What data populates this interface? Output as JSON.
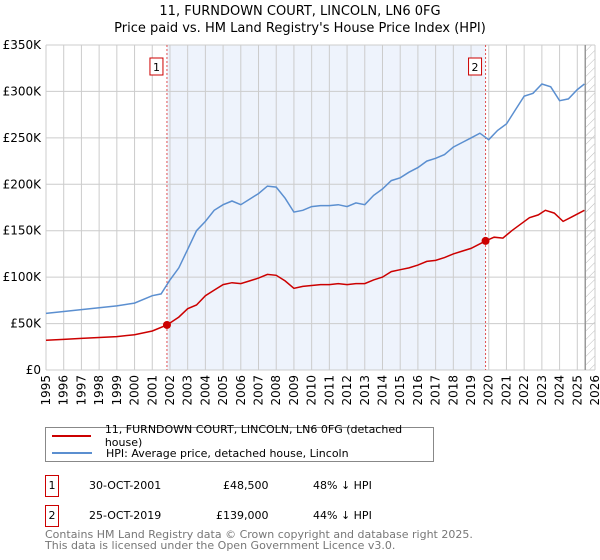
{
  "title": "11, FURNDOWN COURT, LINCOLN, LN6 0FG",
  "subtitle": "Price paid vs. HM Land Registry's House Price Index (HPI)",
  "chart_data": {
    "type": "line",
    "xlim": [
      1995,
      2026
    ],
    "ylim": [
      0,
      350000
    ],
    "yticks": [
      {
        "v": 0,
        "label": "£0"
      },
      {
        "v": 50000,
        "label": "£50K"
      },
      {
        "v": 100000,
        "label": "£100K"
      },
      {
        "v": 150000,
        "label": "£150K"
      },
      {
        "v": 200000,
        "label": "£200K"
      },
      {
        "v": 250000,
        "label": "£250K"
      },
      {
        "v": 300000,
        "label": "£300K"
      },
      {
        "v": 350000,
        "label": "£350K"
      }
    ],
    "xticks": [
      "1995",
      "1996",
      "1997",
      "1998",
      "1999",
      "2000",
      "2001",
      "2002",
      "2003",
      "2004",
      "2005",
      "2006",
      "2007",
      "2008",
      "2009",
      "2010",
      "2011",
      "2012",
      "2013",
      "2014",
      "2015",
      "2016",
      "2017",
      "2018",
      "2019",
      "2020",
      "2021",
      "2022",
      "2023",
      "2024",
      "2025",
      "2026"
    ],
    "shaded_range": [
      2001.83,
      2019.82
    ],
    "forecast_hatch_from": 2025.45,
    "series": [
      {
        "name": "11, FURNDOWN COURT, LINCOLN, LN6 0FG (detached house)",
        "color": "#cc0000",
        "x": [
          1995,
          1996,
          1997,
          1998,
          1999,
          2000,
          2001,
          2001.83,
          2002.5,
          2003,
          2003.5,
          2004,
          2004.5,
          2005,
          2005.5,
          2006,
          2006.5,
          2007,
          2007.5,
          2008,
          2008.5,
          2009,
          2009.5,
          2010,
          2010.5,
          2011,
          2011.5,
          2012,
          2012.5,
          2013,
          2013.5,
          2014,
          2014.5,
          2015,
          2015.5,
          2016,
          2016.5,
          2017,
          2017.5,
          2018,
          2018.5,
          2019,
          2019.82,
          2020.3,
          2020.8,
          2021.3,
          2021.8,
          2022.3,
          2022.8,
          2023.2,
          2023.7,
          2024.2,
          2024.7,
          2025.4
        ],
        "y": [
          32000,
          33000,
          34000,
          35000,
          36000,
          38000,
          42000,
          48500,
          57000,
          66000,
          70000,
          80000,
          86000,
          92000,
          94000,
          93000,
          96000,
          99000,
          103000,
          102000,
          96000,
          88000,
          90000,
          91000,
          92000,
          92000,
          93000,
          92000,
          93000,
          93000,
          97000,
          100000,
          106000,
          108000,
          110000,
          113000,
          117000,
          118000,
          121000,
          125000,
          128000,
          131000,
          139000,
          143000,
          142000,
          150000,
          157000,
          164000,
          167000,
          172000,
          169000,
          160000,
          165000,
          172000
        ]
      },
      {
        "name": "HPI: Average price, detached house, Lincoln",
        "color": "#5b8fd0",
        "x": [
          1995,
          1996,
          1997,
          1998,
          1999,
          2000,
          2001,
          2001.5,
          2002,
          2002.5,
          2003,
          2003.5,
          2004,
          2004.5,
          2005,
          2005.5,
          2006,
          2006.5,
          2007,
          2007.5,
          2008,
          2008.5,
          2009,
          2009.5,
          2010,
          2010.5,
          2011,
          2011.5,
          2012,
          2012.5,
          2013,
          2013.5,
          2014,
          2014.5,
          2015,
          2015.5,
          2016,
          2016.5,
          2017,
          2017.5,
          2018,
          2018.5,
          2019,
          2019.5,
          2020,
          2020.5,
          2021,
          2021.5,
          2022,
          2022.5,
          2023,
          2023.5,
          2024,
          2024.5,
          2025,
          2025.4
        ],
        "y": [
          61000,
          63000,
          65000,
          67000,
          69000,
          72000,
          80000,
          82000,
          97000,
          110000,
          130000,
          150000,
          160000,
          172000,
          178000,
          182000,
          178000,
          184000,
          190000,
          198000,
          197000,
          185000,
          170000,
          172000,
          176000,
          177000,
          177000,
          178000,
          176000,
          180000,
          178000,
          188000,
          195000,
          204000,
          207000,
          213000,
          218000,
          225000,
          228000,
          232000,
          240000,
          245000,
          250000,
          255000,
          248000,
          258000,
          265000,
          280000,
          295000,
          298000,
          308000,
          305000,
          290000,
          292000,
          302000,
          308000
        ]
      }
    ],
    "markers": [
      {
        "label": "1",
        "x": 2001.83,
        "y": 48500
      },
      {
        "label": "2",
        "x": 2019.82,
        "y": 139000
      }
    ]
  },
  "legend": {
    "property": "11, FURNDOWN COURT, LINCOLN, LN6 0FG (detached house)",
    "hpi": "HPI: Average price, detached house, Lincoln"
  },
  "transactions": [
    {
      "num": "1",
      "date": "30-OCT-2001",
      "price": "£48,500",
      "diff": "48% ↓ HPI"
    },
    {
      "num": "2",
      "date": "25-OCT-2019",
      "price": "£139,000",
      "diff": "44% ↓ HPI"
    }
  ],
  "footer": {
    "line1": "Contains HM Land Registry data © Crown copyright and database right 2025.",
    "line2": "This data is licensed under the Open Government Licence v3.0."
  }
}
